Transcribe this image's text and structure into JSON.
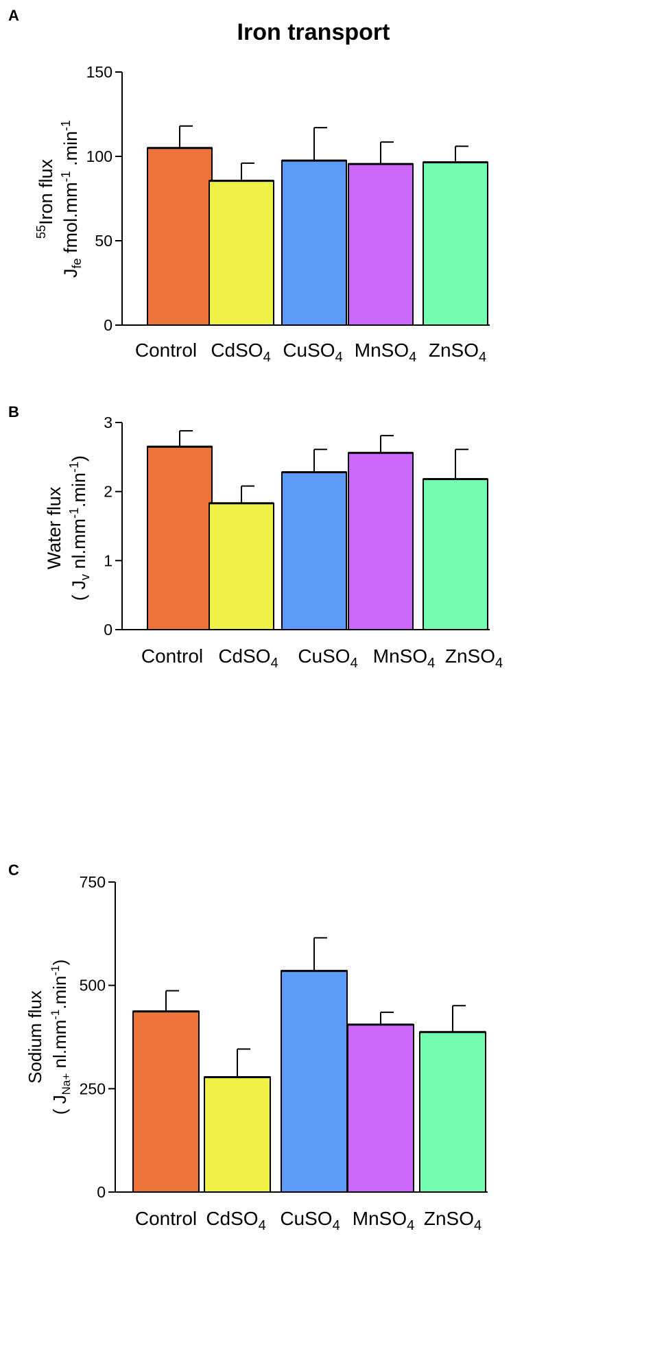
{
  "chart_data": [
    {
      "panel": "A",
      "type": "bar",
      "title": "Iron transport",
      "ylabel": {
        "line1_sup": "55",
        "line1": "Iron flux",
        "line2_main": "J",
        "line2_sub": "fe",
        "line2_mid": " fmol.mm",
        "line2_sup1": "-1",
        "line2_mid2": " .min",
        "line2_sup2": "-1"
      },
      "ylim": [
        0,
        150
      ],
      "yticks": [
        "0",
        "50",
        "100",
        "150"
      ],
      "categories": [
        {
          "main": "Control",
          "sub": ""
        },
        {
          "main": "CdSO",
          "sub": "4"
        },
        {
          "main": "CuSO",
          "sub": "4"
        },
        {
          "main": "MnSO",
          "sub": "4"
        },
        {
          "main": "ZnSO",
          "sub": "4"
        }
      ],
      "values": [
        105,
        85.5,
        97.5,
        95.5,
        96.5
      ],
      "errors": [
        13,
        10.5,
        19.5,
        13,
        9.5
      ],
      "colors": [
        "#ec733a",
        "#eff146",
        "#5d9bf8",
        "#cb68fb",
        "#74fdb0"
      ]
    },
    {
      "panel": "B",
      "type": "bar",
      "title": "",
      "ylabel": {
        "line1": "Water flux",
        "line2_pre": "( ",
        "line2_main": "J",
        "line2_sub": "v",
        "line2_mid": " nl.mm",
        "line2_sup1": "-1",
        "line2_mid2": ".min",
        "line2_sup2": "-1",
        "line2_post": ")"
      },
      "ylim": [
        0,
        3
      ],
      "yticks": [
        "0",
        "1",
        "2",
        "3"
      ],
      "categories": [
        {
          "main": "Control",
          "sub": ""
        },
        {
          "main": "CdSO",
          "sub": "4"
        },
        {
          "main": "CuSO",
          "sub": "4"
        },
        {
          "main": "MnSO",
          "sub": "4"
        },
        {
          "main": "ZnSO",
          "sub": "4"
        }
      ],
      "values": [
        2.65,
        1.83,
        2.28,
        2.56,
        2.18
      ],
      "errors": [
        0.23,
        0.25,
        0.33,
        0.25,
        0.43
      ],
      "colors": [
        "#ec733a",
        "#eff146",
        "#5d9bf8",
        "#cb68fb",
        "#74fdb0"
      ]
    },
    {
      "panel": "C",
      "type": "bar",
      "title": "",
      "ylabel": {
        "line1": "Sodium  flux",
        "line2_pre": "( ",
        "line2_main": "J",
        "line2_sub": "Na+",
        "line2_mid": " nl.mm",
        "line2_sup1": "-1",
        "line2_mid2": ".min",
        "line2_sup2": "-1",
        "line2_post": ")"
      },
      "ylim": [
        0,
        750
      ],
      "yticks": [
        "0",
        "250",
        "500",
        "750"
      ],
      "categories": [
        {
          "main": "Control",
          "sub": ""
        },
        {
          "main": "CdSO",
          "sub": "4"
        },
        {
          "main": "CuSO",
          "sub": "4"
        },
        {
          "main": "MnSO",
          "sub": "4"
        },
        {
          "main": "ZnSO",
          "sub": "4"
        }
      ],
      "values": [
        437,
        278,
        535,
        405,
        387
      ],
      "errors": [
        50,
        68,
        80,
        30,
        64
      ],
      "colors": [
        "#ec733a",
        "#eff146",
        "#5d9bf8",
        "#cb68fb",
        "#74fdb0"
      ]
    }
  ]
}
